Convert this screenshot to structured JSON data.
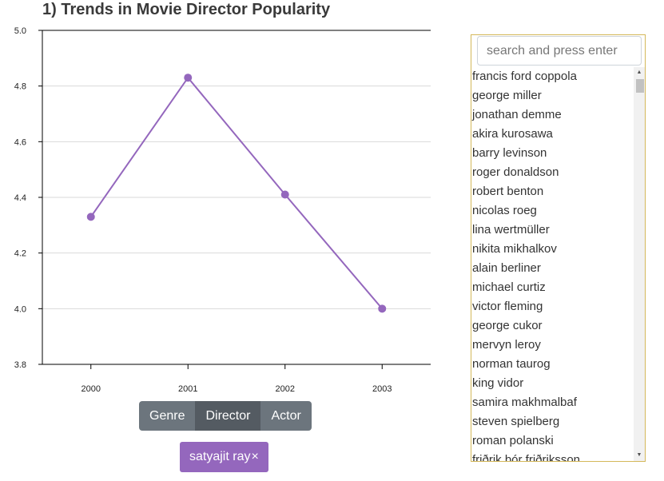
{
  "page": {
    "title": "1) Trends in Movie Director Popularity"
  },
  "chart_data": {
    "type": "line",
    "x": [
      "2000",
      "2001",
      "2002",
      "2003"
    ],
    "values": [
      4.33,
      4.83,
      4.41,
      4.0
    ],
    "ylim": [
      3.8,
      5.0
    ],
    "yticks": [
      "3.8",
      "4.0",
      "4.2",
      "4.4",
      "4.6",
      "4.8",
      "5.0"
    ],
    "grid": true,
    "color": "#9467bd"
  },
  "toggle": {
    "options": [
      "Genre",
      "Director",
      "Actor"
    ],
    "selected": "Director"
  },
  "selected_tag": {
    "label": "satyajit ray",
    "close": "×"
  },
  "search": {
    "placeholder": "search and press enter"
  },
  "directors": [
    "francis ford coppola",
    "george miller",
    "jonathan demme",
    "akira kurosawa",
    "barry levinson",
    "roger donaldson",
    "robert benton",
    "nicolas roeg",
    "lina wertmüller",
    "nikita mikhalkov",
    "alain berliner",
    "michael curtiz",
    "victor fleming",
    "george cukor",
    "mervyn leroy",
    "norman taurog",
    "king vidor",
    "samira makhmalbaf",
    "steven spielberg",
    "roman polanski",
    "friðrik þór friðriksson"
  ],
  "scrollbar": {
    "up_icon": "▲",
    "down_icon": "▼"
  }
}
